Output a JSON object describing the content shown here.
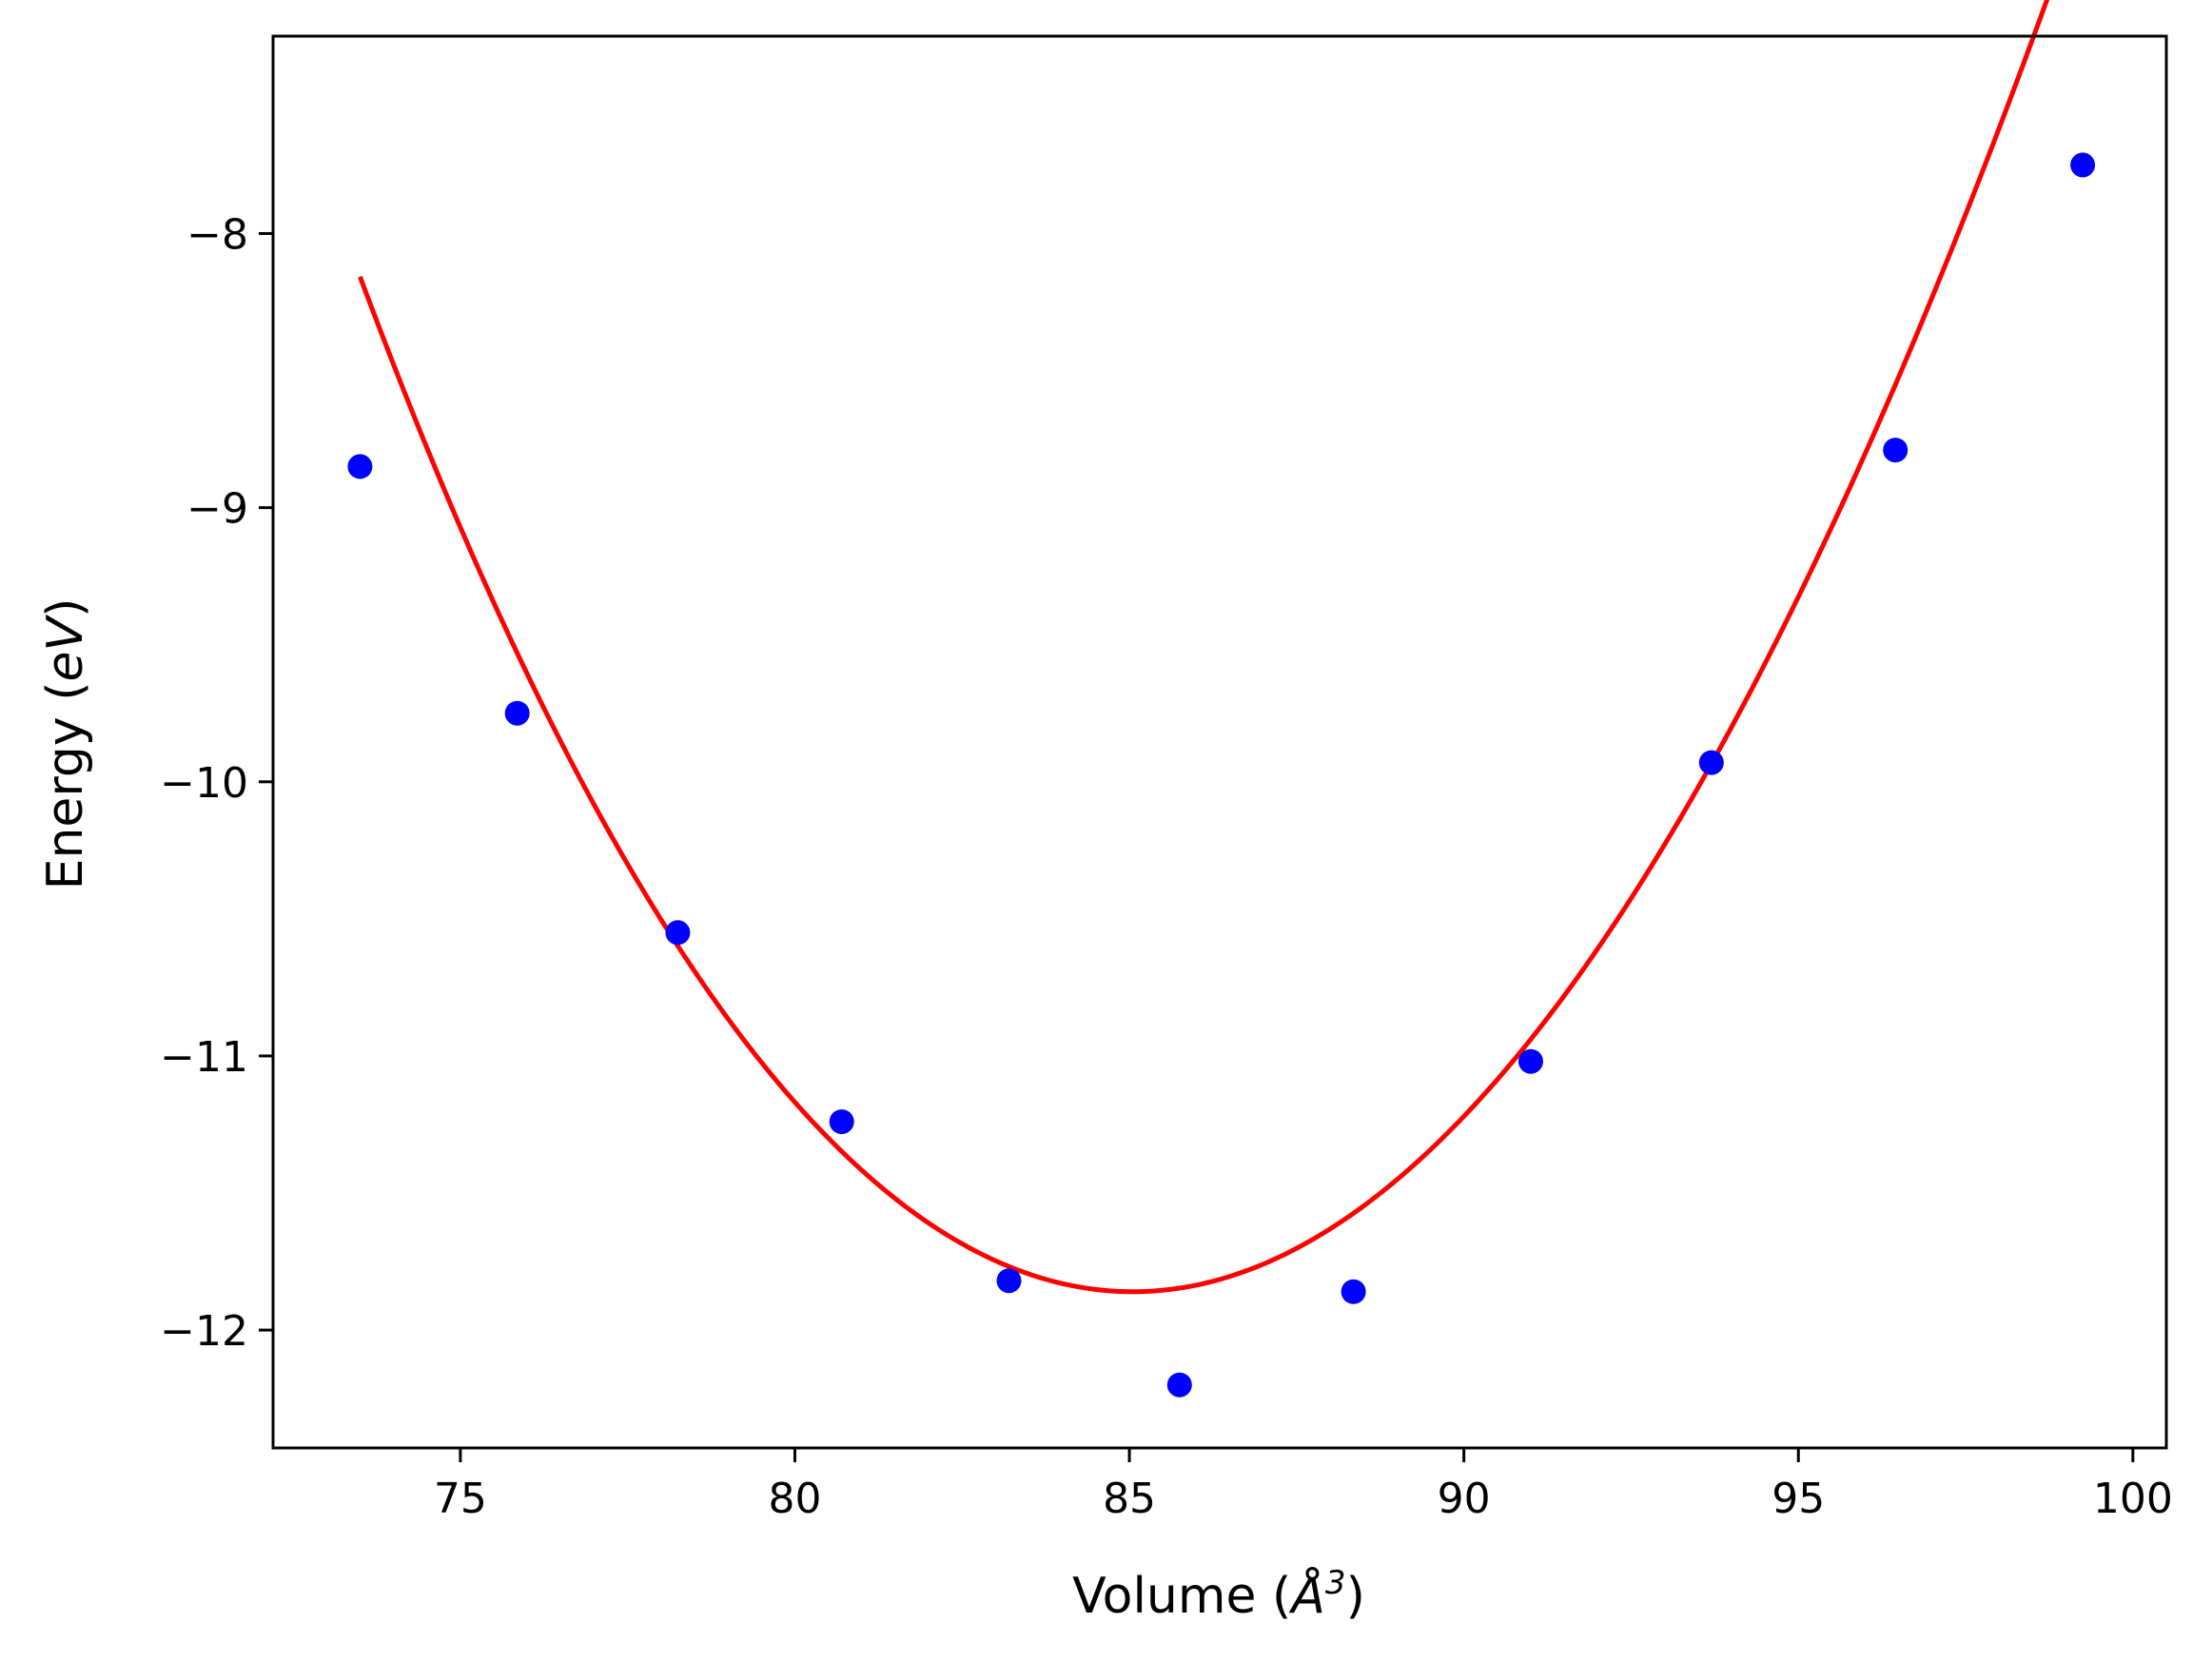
{
  "chart_data": {
    "type": "scatter",
    "xlabel": {
      "pre": "Volume (",
      "sym": "Å",
      "sup": "3",
      "post": ")"
    },
    "ylabel": {
      "pre": "Energy (",
      "unit": "eV",
      "post": ")"
    },
    "xlim": [
      72.2,
      100.5
    ],
    "ylim": [
      -12.43,
      -7.28
    ],
    "xticks": [
      75,
      80,
      85,
      90,
      95,
      100
    ],
    "yticks": [
      -8,
      -9,
      -10,
      -11,
      -12
    ],
    "xtick_labels": [
      "75",
      "80",
      "85",
      "90",
      "95",
      "100"
    ],
    "ytick_labels": [
      "−8",
      "−9",
      "−10",
      "−11",
      "−12"
    ],
    "grid": false,
    "series": [
      {
        "kind": "points",
        "color": "#0000ff",
        "x": [
          73.5,
          75.85,
          78.25,
          80.7,
          83.2,
          85.75,
          88.35,
          91.0,
          93.7,
          96.45,
          99.25
        ],
        "y": [
          -8.85,
          -9.75,
          -10.55,
          -11.24,
          -11.82,
          -12.2,
          -11.86,
          -11.02,
          -9.93,
          -8.79,
          -7.75
        ]
      },
      {
        "kind": "fit-line",
        "color": "#ff0000",
        "x_range": [
          73.5,
          99.3
        ],
        "poly": {
          "a": 0.0266,
          "b": -0.0001,
          "x0": 85.05,
          "c": -11.86
        }
      }
    ]
  }
}
